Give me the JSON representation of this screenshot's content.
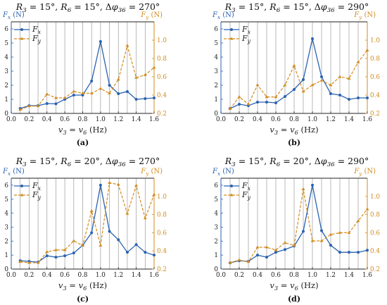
{
  "chart_data": [
    {
      "type": "line",
      "title": "R3 = 15°, R6 = 15°, Δφ36 = 270°",
      "title_parts": {
        "r3": "3",
        "r3v": " = 15°, ",
        "r6": "6",
        "r6v": " = 15°, Δ",
        "phi": "36",
        "phiv": " = 270°"
      },
      "caption": "(a)",
      "xlabel": "v3 = v6 (Hz)",
      "ylabel_left": "Fx (N)",
      "ylabel_right": "Fy (N)",
      "xlim": [
        0,
        1.6
      ],
      "ylim_left": [
        0,
        6.5
      ],
      "ylim_right": [
        0.2,
        1.2
      ],
      "xticks": [
        "0.0",
        "0.2",
        "0.4",
        "0.6",
        "0.8",
        "1.0",
        "1.2",
        "1.4",
        "1.6"
      ],
      "yticks_left": [
        "0",
        "1",
        "2",
        "3",
        "4",
        "5",
        "6"
      ],
      "yticks_right": [
        "0.2",
        "0.4",
        "0.6",
        "0.8",
        "1.0"
      ],
      "legend": "top-left",
      "series": [
        {
          "name": "Fx",
          "axis": "left",
          "x": [
            0.1,
            0.2,
            0.3,
            0.4,
            0.5,
            0.6,
            0.7,
            0.8,
            0.9,
            1.0,
            1.1,
            1.2,
            1.3,
            1.4,
            1.5,
            1.6
          ],
          "values": [
            0.35,
            0.55,
            0.55,
            0.7,
            0.68,
            1.0,
            1.3,
            1.3,
            2.3,
            5.1,
            2.0,
            1.4,
            1.55,
            1.0,
            1.05,
            1.1
          ]
        },
        {
          "name": "Fy",
          "axis": "right",
          "x": [
            0.1,
            0.2,
            0.3,
            0.4,
            0.5,
            0.6,
            0.7,
            0.8,
            0.9,
            1.0,
            1.1,
            1.2,
            1.3,
            1.4,
            1.5,
            1.6
          ],
          "values": [
            0.24,
            0.28,
            0.28,
            0.41,
            0.37,
            0.37,
            0.44,
            0.42,
            0.42,
            0.47,
            0.42,
            0.57,
            0.94,
            0.59,
            0.62,
            0.7
          ]
        }
      ]
    },
    {
      "type": "line",
      "title": "R3 = 15°, R6 = 15°, Δφ36 = 290°",
      "title_parts": {
        "r3": "3",
        "r3v": " = 15°, ",
        "r6": "6",
        "r6v": " = 15°, Δ",
        "phi": "36",
        "phiv": " = 290°"
      },
      "caption": "(b)",
      "xlabel": "v3 = v6 (Hz)",
      "ylabel_left": "Fx (N)",
      "ylabel_right": "Fy (N)",
      "xlim": [
        0,
        1.6
      ],
      "ylim_left": [
        0,
        6.5
      ],
      "ylim_right": [
        0.2,
        1.2
      ],
      "xticks": [
        "0.0",
        "0.2",
        "0.4",
        "0.6",
        "0.8",
        "1.0",
        "1.2",
        "1.4",
        "1.6"
      ],
      "yticks_left": [
        "0",
        "1",
        "2",
        "3",
        "4",
        "5",
        "6"
      ],
      "yticks_right": [
        "0.2",
        "0.4",
        "0.6",
        "0.8",
        "1.0"
      ],
      "legend": "top-left",
      "series": [
        {
          "name": "Fx",
          "axis": "left",
          "x": [
            0.1,
            0.2,
            0.3,
            0.4,
            0.5,
            0.6,
            0.7,
            0.8,
            0.9,
            1.0,
            1.1,
            1.2,
            1.3,
            1.4,
            1.5,
            1.6
          ],
          "values": [
            0.35,
            0.65,
            0.55,
            0.8,
            0.8,
            0.75,
            1.2,
            1.7,
            2.4,
            5.3,
            2.6,
            1.4,
            1.3,
            1.0,
            1.1,
            1.1
          ]
        },
        {
          "name": "Fy",
          "axis": "right",
          "x": [
            0.1,
            0.2,
            0.3,
            0.4,
            0.5,
            0.6,
            0.7,
            0.8,
            0.9,
            1.0,
            1.1,
            1.2,
            1.3,
            1.4,
            1.5,
            1.6
          ],
          "values": [
            0.25,
            0.38,
            0.3,
            0.51,
            0.38,
            0.38,
            0.51,
            0.72,
            0.44,
            0.51,
            0.56,
            0.51,
            0.6,
            0.58,
            0.76,
            0.89
          ]
        }
      ]
    },
    {
      "type": "line",
      "title": "R3 = 15°, R6 = 20°, Δφ36 = 270°",
      "title_parts": {
        "r3": "3",
        "r3v": " = 15°, ",
        "r6": "6",
        "r6v": " = 20°, Δ",
        "phi": "36",
        "phiv": " = 270°"
      },
      "caption": "(c)",
      "xlabel": "v3 = v6 (Hz)",
      "ylabel_left": "Fx (N)",
      "ylabel_right": "Fy (N)",
      "xlim": [
        0,
        1.6
      ],
      "ylim_left": [
        0,
        6.5
      ],
      "ylim_right": [
        0.2,
        1.2
      ],
      "xticks": [
        "0.0",
        "0.2",
        "0.4",
        "0.6",
        "0.8",
        "1.0",
        "1.2",
        "1.4",
        "1.6"
      ],
      "yticks_left": [
        "0",
        "1",
        "2",
        "3",
        "4",
        "5",
        "6"
      ],
      "yticks_right": [
        "0.2",
        "0.4",
        "0.6",
        "0.8",
        "1.0"
      ],
      "legend": "top-left",
      "series": [
        {
          "name": "Fx",
          "axis": "left",
          "x": [
            0.1,
            0.2,
            0.3,
            0.4,
            0.5,
            0.6,
            0.7,
            0.8,
            0.9,
            1.0,
            1.1,
            1.2,
            1.3,
            1.4,
            1.5,
            1.6
          ],
          "values": [
            0.6,
            0.55,
            0.5,
            0.95,
            0.85,
            0.95,
            1.15,
            1.7,
            2.6,
            6.0,
            2.7,
            2.1,
            1.2,
            1.75,
            1.2,
            1.0
          ]
        },
        {
          "name": "Fy",
          "axis": "right",
          "x": [
            0.1,
            0.2,
            0.3,
            0.4,
            0.5,
            0.6,
            0.7,
            0.8,
            0.9,
            1.0,
            1.1,
            1.2,
            1.3,
            1.4,
            1.5,
            1.6
          ],
          "values": [
            0.28,
            0.27,
            0.27,
            0.39,
            0.41,
            0.41,
            0.51,
            0.46,
            0.84,
            0.46,
            1.15,
            1.13,
            0.81,
            1.12,
            0.76,
            1.02
          ]
        }
      ]
    },
    {
      "type": "line",
      "title": "R3 = 15°, R6 = 20°, Δφ36 = 290°",
      "title_parts": {
        "r3": "3",
        "r3v": " = 15°, ",
        "r6": "6",
        "r6v": " = 20°, Δ",
        "phi": "36",
        "phiv": " = 290°"
      },
      "caption": "(d)",
      "xlabel": "v3 = v6 (Hz)",
      "ylabel_left": "Fx (N)",
      "ylabel_right": "Fy (N)",
      "xlim": [
        0,
        1.6
      ],
      "ylim_left": [
        0,
        6.5
      ],
      "ylim_right": [
        0.2,
        1.2
      ],
      "xticks": [
        "0.0",
        "0.2",
        "0.4",
        "0.6",
        "0.8",
        "1.0",
        "1.2",
        "1.4",
        "1.6"
      ],
      "yticks_left": [
        "0",
        "1",
        "2",
        "3",
        "4",
        "5",
        "6"
      ],
      "yticks_right": [
        "0.2",
        "0.4",
        "0.6",
        "0.8",
        "1.0"
      ],
      "legend": "top-left",
      "series": [
        {
          "name": "Fx",
          "axis": "left",
          "x": [
            0.1,
            0.2,
            0.3,
            0.4,
            0.5,
            0.6,
            0.7,
            0.8,
            0.9,
            1.0,
            1.1,
            1.2,
            1.3,
            1.4,
            1.5,
            1.6
          ],
          "values": [
            0.45,
            0.6,
            0.55,
            1.0,
            0.85,
            1.2,
            1.4,
            1.65,
            2.7,
            6.0,
            2.75,
            1.7,
            1.2,
            1.2,
            1.2,
            1.35
          ]
        },
        {
          "name": "Fy",
          "axis": "right",
          "x": [
            0.1,
            0.2,
            0.3,
            0.4,
            0.5,
            0.6,
            0.7,
            0.8,
            0.9,
            1.0,
            1.1,
            1.2,
            1.3,
            1.4,
            1.5,
            1.6
          ],
          "values": [
            0.27,
            0.3,
            0.28,
            0.44,
            0.44,
            0.41,
            0.49,
            0.46,
            1.08,
            0.51,
            0.51,
            0.58,
            0.6,
            0.6,
            0.73,
            0.86
          ]
        }
      ]
    }
  ],
  "colors": {
    "fx": "#2a62b0",
    "fy": "#d38b1f",
    "grid": "#9a9a9a"
  }
}
